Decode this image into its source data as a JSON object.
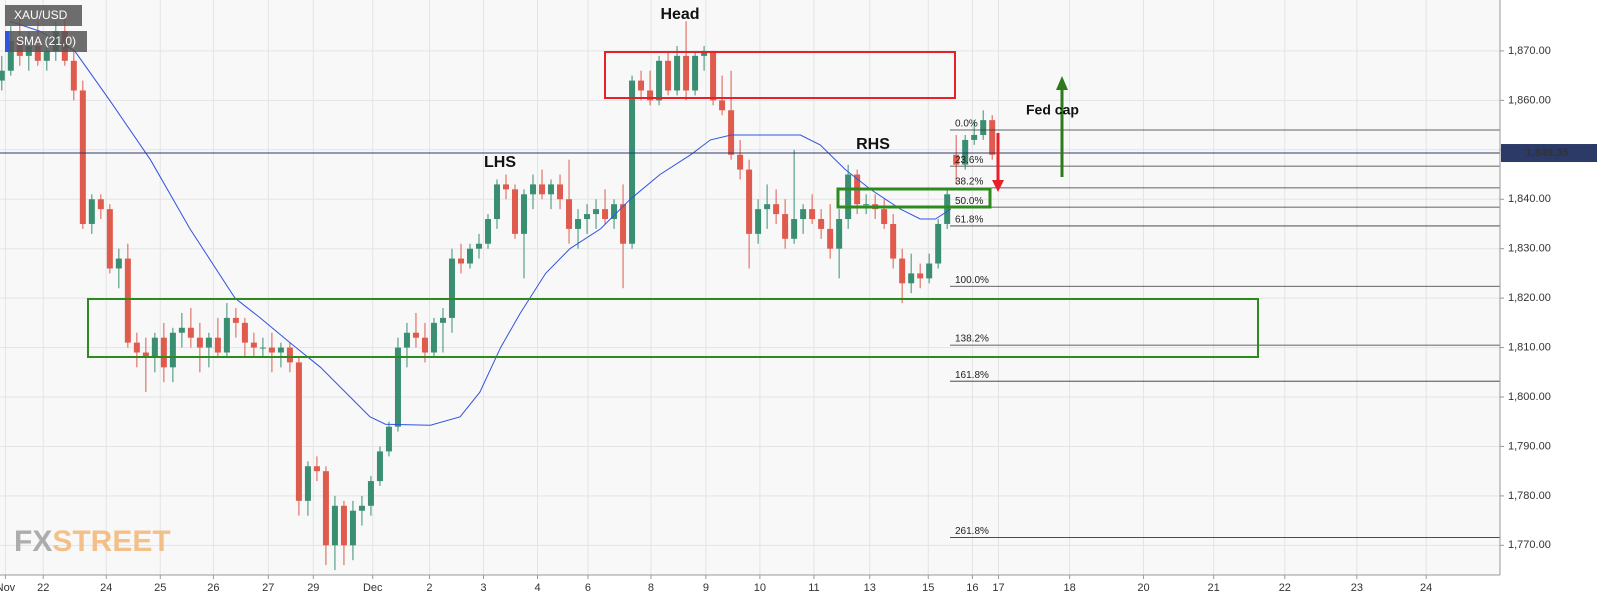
{
  "chart_data": {
    "type": "candlestick",
    "symbol": "XAU/USD",
    "up_color": "#3a8f72",
    "down_color": "#de5b4d",
    "open": [
      1864,
      1866,
      1872,
      1869,
      1871,
      1868,
      1870,
      1874,
      1868,
      1862,
      1835,
      1840,
      1838,
      1826,
      1828,
      1811,
      1809,
      1808,
      1812,
      1806,
      1813,
      1814,
      1812,
      1810,
      1812,
      1809,
      1816,
      1815,
      1811,
      1810,
      1810,
      1809,
      1810,
      1807,
      1779,
      1786,
      1785,
      1770,
      1778,
      1770,
      1777,
      1778,
      1783,
      1789,
      1794,
      1810,
      1813,
      1812,
      1809,
      1815,
      1816,
      1828,
      1827,
      1830,
      1831,
      1836,
      1843,
      1842,
      1833,
      1841,
      1843,
      1841,
      1843,
      1840,
      1834,
      1836,
      1837,
      1838,
      1836,
      1839,
      1831,
      1864,
      1862,
      1860,
      1868,
      1862,
      1869,
      1862,
      1869,
      1870,
      1860,
      1858,
      1849,
      1846,
      1833,
      1838,
      1839,
      1837,
      1832,
      1836,
      1838,
      1836,
      1834,
      1830,
      1836,
      1845,
      1839,
      1839,
      1838,
      1835,
      1828,
      1823,
      1825,
      1824,
      1827,
      1835,
      1849,
      1847,
      1852,
      1853,
      1856
    ],
    "high": [
      1869,
      1875,
      1878,
      1874,
      1876,
      1872,
      1876,
      1878,
      1870,
      1864,
      1841,
      1841,
      1839,
      1830,
      1831,
      1813,
      1812,
      1813,
      1815,
      1814,
      1817,
      1818,
      1815,
      1813,
      1816,
      1819,
      1818,
      1816,
      1813,
      1812,
      1813,
      1811,
      1811,
      1808,
      1787,
      1788,
      1786,
      1780,
      1779,
      1779,
      1780,
      1784,
      1790,
      1795,
      1812,
      1815,
      1817,
      1815,
      1816,
      1818,
      1830,
      1831,
      1831,
      1833,
      1837,
      1844,
      1845,
      1843,
      1842,
      1845,
      1846,
      1844,
      1845,
      1848,
      1838,
      1839,
      1840,
      1842,
      1840,
      1843,
      1865,
      1866,
      1866,
      1869,
      1870,
      1871,
      1876,
      1870,
      1871,
      1870,
      1865,
      1866,
      1852,
      1848,
      1840,
      1843,
      1842,
      1840,
      1850,
      1839,
      1841,
      1838,
      1839,
      1838,
      1847,
      1846,
      1841,
      1841,
      1840,
      1837,
      1830,
      1829,
      1827,
      1829,
      1836,
      1842,
      1853,
      1853,
      1856,
      1858,
      1857
    ],
    "low": [
      1862,
      1865,
      1867,
      1866,
      1867,
      1866,
      1868,
      1867,
      1860,
      1834,
      1833,
      1836,
      1825,
      1822,
      1810,
      1806,
      1801,
      1805,
      1803,
      1803,
      1810,
      1810,
      1805,
      1806,
      1808,
      1808,
      1812,
      1808,
      1808,
      1808,
      1805,
      1806,
      1805,
      1776,
      1776,
      1783,
      1766,
      1765,
      1766,
      1767,
      1774,
      1776,
      1782,
      1788,
      1793,
      1806,
      1810,
      1807,
      1808,
      1809,
      1813,
      1825,
      1826,
      1828,
      1830,
      1834,
      1840,
      1832,
      1824,
      1838,
      1840,
      1838,
      1838,
      1831,
      1830,
      1833,
      1834,
      1835,
      1834,
      1822,
      1830,
      1860,
      1859,
      1859,
      1861,
      1861,
      1860,
      1861,
      1866,
      1859,
      1857,
      1848,
      1844,
      1826,
      1831,
      1834,
      1835,
      1830,
      1831,
      1833,
      1835,
      1832,
      1828,
      1824,
      1834,
      1837,
      1837,
      1836,
      1834,
      1826,
      1819,
      1821,
      1822,
      1823,
      1826,
      1834,
      1843,
      1846,
      1851,
      1852,
      1848
    ],
    "close": [
      1866,
      1872,
      1869,
      1871,
      1868,
      1870,
      1874,
      1868,
      1862,
      1835,
      1840,
      1838,
      1826,
      1828,
      1811,
      1809,
      1808,
      1812,
      1806,
      1813,
      1814,
      1812,
      1810,
      1812,
      1809,
      1816,
      1815,
      1811,
      1810,
      1810,
      1809,
      1810,
      1807,
      1779,
      1786,
      1785,
      1770,
      1778,
      1770,
      1777,
      1778,
      1783,
      1789,
      1794,
      1810,
      1813,
      1812,
      1809,
      1815,
      1816,
      1828,
      1827,
      1830,
      1831,
      1836,
      1843,
      1842,
      1833,
      1841,
      1843,
      1841,
      1843,
      1840,
      1834,
      1836,
      1837,
      1838,
      1836,
      1839,
      1831,
      1864,
      1862,
      1860,
      1868,
      1862,
      1869,
      1862,
      1869,
      1870,
      1860,
      1858,
      1849,
      1846,
      1833,
      1838,
      1839,
      1837,
      1832,
      1836,
      1838,
      1836,
      1834,
      1830,
      1836,
      1845,
      1839,
      1839,
      1838,
      1835,
      1828,
      1823,
      1825,
      1824,
      1827,
      1835,
      1841,
      1847,
      1852,
      1853,
      1856,
      1849
    ],
    "sma": {
      "name": "SMA (21,0)",
      "color": "#3053e0",
      "x": [
        0.9,
        4.2,
        8.1,
        12,
        16.5,
        20.9,
        25.9,
        28.7,
        32,
        35.4,
        38.7,
        40.9,
        42.6,
        47.6,
        50.9,
        53.1,
        55.4,
        57.6,
        60.4,
        63.1,
        66.5,
        69.8,
        73.1,
        76.5,
        78.7,
        81,
        84.2,
        88.7,
        90.9,
        93.7,
        96.5,
        99.8,
        102,
        103.7,
        105.4
      ],
      "values": [
        1876,
        1874,
        1870,
        1860,
        1848,
        1834,
        1820,
        1816,
        1811,
        1806,
        1800,
        1796,
        1794.5,
        1794.3,
        1796,
        1801,
        1810,
        1817,
        1825,
        1830,
        1834,
        1840,
        1845,
        1849,
        1852,
        1853,
        1853,
        1853,
        1851,
        1846,
        1842,
        1838,
        1836,
        1836,
        1838
      ]
    },
    "current_price": {
      "value": 1849.35,
      "label": "1,849.35"
    },
    "fib_levels": [
      {
        "value": 1854,
        "label": "0.0%"
      },
      {
        "value": 1846.7,
        "label": "23.6%"
      },
      {
        "value": 1842.3,
        "label": "38.2%"
      },
      {
        "value": 1838.4,
        "label": "50.0%"
      },
      {
        "value": 1834.6,
        "label": "61.8%"
      },
      {
        "value": 1822.4,
        "label": "100.0%"
      },
      {
        "value": 1810.5,
        "label": "138.2%"
      },
      {
        "value": 1803.2,
        "label": "161.8%"
      },
      {
        "value": 1771.6,
        "label": "261.8%"
      }
    ],
    "annotations": {
      "head": "Head",
      "lhs": "LHS",
      "rhs": "RHS",
      "fed_cap": "Fed cap"
    },
    "logo": {
      "fx": "FX",
      "street": "STREET"
    },
    "xlim": [
      -0.2,
      166.4
    ],
    "ylim": [
      1764,
      1880.3
    ],
    "yticks": [
      {
        "value": 1770,
        "label": "1,770.00"
      },
      {
        "value": 1780,
        "label": "1,780.00"
      },
      {
        "value": 1790,
        "label": "1,790.00"
      },
      {
        "value": 1800,
        "label": "1,800.00"
      },
      {
        "value": 1810,
        "label": "1,810.00"
      },
      {
        "value": 1820,
        "label": "1,820.00"
      },
      {
        "value": 1830,
        "label": "1,830.00"
      },
      {
        "value": 1840,
        "label": "1,840.00"
      },
      {
        "value": 1850,
        "label": "1,850.00"
      },
      {
        "value": 1860,
        "label": "1,860.00"
      },
      {
        "value": 1870,
        "label": "1,870.00"
      }
    ],
    "xticks": [
      {
        "value": 0.4,
        "label": "Nov"
      },
      {
        "value": 4.6,
        "label": "22"
      },
      {
        "value": 11.6,
        "label": "24"
      },
      {
        "value": 17.6,
        "label": "25"
      },
      {
        "value": 23.5,
        "label": "26"
      },
      {
        "value": 29.6,
        "label": "27"
      },
      {
        "value": 34.6,
        "label": "29"
      },
      {
        "value": 41.2,
        "label": "Dec"
      },
      {
        "value": 47.5,
        "label": "2"
      },
      {
        "value": 53.5,
        "label": "3"
      },
      {
        "value": 59.5,
        "label": "4"
      },
      {
        "value": 65.1,
        "label": "6"
      },
      {
        "value": 72.1,
        "label": "8"
      },
      {
        "value": 78.2,
        "label": "9"
      },
      {
        "value": 84.2,
        "label": "10"
      },
      {
        "value": 90.2,
        "label": "11"
      },
      {
        "value": 96.4,
        "label": "13"
      },
      {
        "value": 102.9,
        "label": "15"
      },
      {
        "value": 107.8,
        "label": "16"
      },
      {
        "value": 110.7,
        "label": "17"
      },
      {
        "value": 118.6,
        "label": "18"
      },
      {
        "value": 126.8,
        "label": "20"
      },
      {
        "value": 134.6,
        "label": "21"
      },
      {
        "value": 142.5,
        "label": "22"
      },
      {
        "value": 150.5,
        "label": "23"
      },
      {
        "value": 158.2,
        "label": "24"
      }
    ],
    "grid": true
  }
}
